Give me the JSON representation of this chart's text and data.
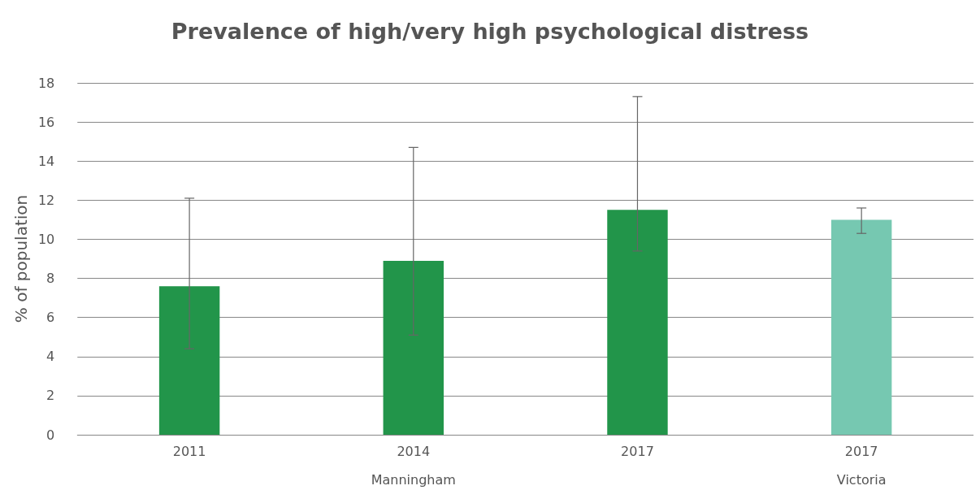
{
  "chart_data": {
    "type": "bar",
    "title": "Prevalence of high/very high psychological distress",
    "ylabel": "% of population",
    "categories": [
      "2011",
      "2014",
      "2017",
      "2017"
    ],
    "values": [
      7.6,
      8.9,
      11.5,
      11.0
    ],
    "colors": [
      "#22954a",
      "#22954a",
      "#22954a",
      "#76c8b1"
    ],
    "errors": [
      [
        4.4,
        12.1
      ],
      [
        5.1,
        14.7
      ],
      [
        9.4,
        17.3
      ],
      [
        10.3,
        11.6
      ]
    ],
    "annotations": [
      "Manningham",
      "Victoria"
    ],
    "ylim": [
      0,
      18
    ],
    "yticks": [
      0,
      2,
      4,
      6,
      8,
      10,
      12,
      14,
      16,
      18
    ],
    "grid": "y"
  }
}
